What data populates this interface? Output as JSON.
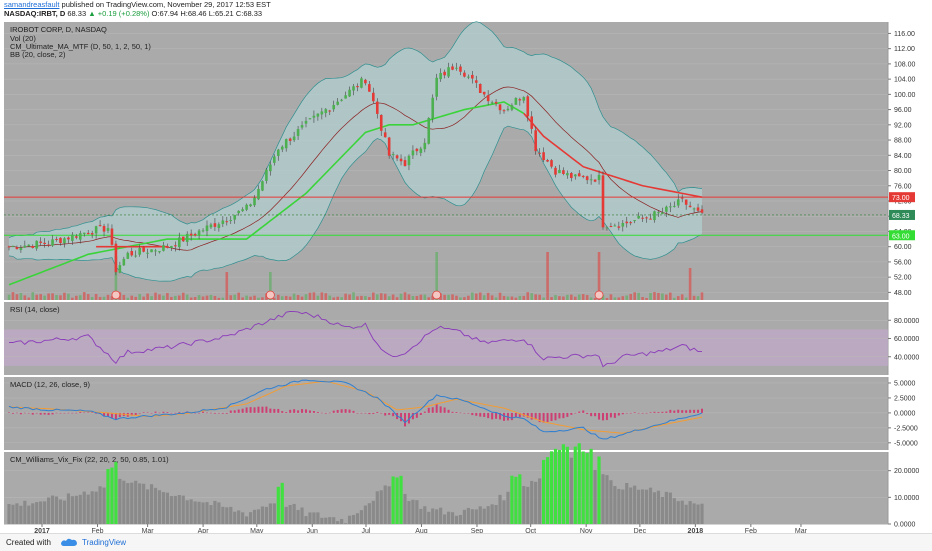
{
  "header": {
    "author": "samandreasfault",
    "published": "published on TradingView.com, November 29, 2017 12:53 EST",
    "symbol": "NASDAQ:IRBT, D",
    "last": "68.33",
    "change_icon": "up-triangle-icon",
    "change": "+0.19 (+0.28%)",
    "o": "O:67.94",
    "h": "H:68.46",
    "l": "L:65.21",
    "c": "C:68.33"
  },
  "footer": {
    "created_with": "Created with",
    "brand": "TradingView",
    "logo_icon": "tradingview-logo-icon"
  },
  "colors": {
    "pane_bg": "#aaaaaa",
    "pane_border": "#bcbcbc",
    "up_candle": "#4caf50",
    "down_candle": "#e53935",
    "wick": "#444444",
    "ma_green": "#3ad43a",
    "ma_red": "#e53935",
    "bb_fill": "#b4dadd",
    "bb_line": "#2f8f8f",
    "basis": "#8b2020",
    "rsi_line": "#8a3ab9",
    "rsi_band": "#c5a8d0",
    "macd_line": "#2f7fd1",
    "signal_line": "#f39c34",
    "hist": "#d81b60",
    "vix_green": "#40e040",
    "vix_gray": "#8a8a8a",
    "hline_red": "#e53935",
    "hline_green": "#33dd33"
  },
  "chart_data": [
    {
      "pane": "price",
      "type": "candlestick",
      "title": "IROBOT CORP, D, NASDAQ",
      "indicators": [
        "Vol (20)",
        "CM_Ultimate_MA_MTF (D, 50, 1, 2, 50, 1)",
        "BB (20, close, 2)"
      ],
      "y_ticks": [
        "116.00",
        "112.00",
        "108.00",
        "104.00",
        "100.00",
        "96.00",
        "92.00",
        "88.00",
        "84.00",
        "80.00",
        "76.00",
        "72.00",
        "68.00",
        "64.00",
        "60.00",
        "56.00",
        "52.00",
        "48.00"
      ],
      "y_tick_values": [
        116,
        112,
        108,
        104,
        100,
        96,
        92,
        88,
        84,
        80,
        76,
        72,
        68,
        64,
        60,
        56,
        52,
        48
      ],
      "ylim": [
        46,
        119
      ],
      "hlines": [
        {
          "value": 73.0,
          "label": "73.00",
          "color": "red"
        },
        {
          "value": 63.0,
          "label": "63.00",
          "color": "green"
        }
      ],
      "last_price_label": "68.33",
      "price_anchors": [
        [
          0,
          60
        ],
        [
          10,
          61
        ],
        [
          20,
          64
        ],
        [
          25,
          65
        ],
        [
          27,
          54
        ],
        [
          30,
          58
        ],
        [
          40,
          60
        ],
        [
          50,
          65
        ],
        [
          60,
          70
        ],
        [
          62,
          73
        ],
        [
          68,
          86
        ],
        [
          75,
          92
        ],
        [
          85,
          100
        ],
        [
          90,
          104
        ],
        [
          93,
          95
        ],
        [
          96,
          84
        ],
        [
          100,
          82
        ],
        [
          105,
          88
        ],
        [
          108,
          104
        ],
        [
          113,
          108
        ],
        [
          120,
          100
        ],
        [
          125,
          96
        ],
        [
          130,
          100
        ],
        [
          133,
          86
        ],
        [
          138,
          80
        ],
        [
          143,
          78
        ],
        [
          149,
          78
        ],
        [
          150,
          66
        ],
        [
          155,
          66
        ],
        [
          165,
          69
        ],
        [
          170,
          72
        ],
        [
          175,
          68
        ]
      ],
      "ma50_anchors": [
        [
          0,
          50
        ],
        [
          20,
          58
        ],
        [
          40,
          62
        ],
        [
          60,
          62
        ],
        [
          75,
          74
        ],
        [
          90,
          90
        ],
        [
          96,
          92
        ],
        [
          102,
          92
        ],
        [
          115,
          96
        ],
        [
          125,
          98
        ],
        [
          130,
          95
        ]
      ],
      "ma50_red_anchors": [
        [
          22,
          60
        ],
        [
          40,
          60
        ],
        [
          130,
          95
        ],
        [
          135,
          89
        ],
        [
          145,
          81
        ],
        [
          160,
          76
        ],
        [
          175,
          73
        ]
      ],
      "vol_spikes": [
        [
          27,
          0.9
        ],
        [
          55,
          0.5
        ],
        [
          66,
          0.5
        ],
        [
          108,
          1.0
        ],
        [
          136,
          1.0
        ],
        [
          149,
          1.0
        ],
        [
          172,
          0.6
        ]
      ]
    },
    {
      "pane": "rsi",
      "type": "line",
      "title": "RSI (14, close)",
      "y_ticks": [
        "80.0000",
        "60.0000",
        "40.0000"
      ],
      "y_tick_values": [
        80,
        60,
        40
      ],
      "ylim": [
        20,
        100
      ],
      "band": [
        30,
        70
      ],
      "anchors": [
        [
          0,
          54
        ],
        [
          10,
          58
        ],
        [
          20,
          62
        ],
        [
          27,
          35
        ],
        [
          30,
          45
        ],
        [
          40,
          50
        ],
        [
          55,
          62
        ],
        [
          66,
          80
        ],
        [
          72,
          90
        ],
        [
          78,
          84
        ],
        [
          85,
          72
        ],
        [
          90,
          75
        ],
        [
          93,
          55
        ],
        [
          96,
          40
        ],
        [
          100,
          45
        ],
        [
          108,
          72
        ],
        [
          113,
          68
        ],
        [
          120,
          55
        ],
        [
          130,
          60
        ],
        [
          135,
          38
        ],
        [
          140,
          40
        ],
        [
          149,
          42
        ],
        [
          150,
          28
        ],
        [
          155,
          40
        ],
        [
          165,
          46
        ],
        [
          170,
          52
        ],
        [
          175,
          45
        ]
      ]
    },
    {
      "pane": "macd",
      "type": "line",
      "title": "MACD (12, 26, close, 9)",
      "y_ticks": [
        "5.0000",
        "2.5000",
        "0.0000",
        "-2.5000",
        "-5.0000"
      ],
      "y_tick_values": [
        5.0,
        2.5,
        0.0,
        -2.5,
        -5.0
      ],
      "ylim": [
        -6.2,
        6.0
      ],
      "macd_anchors": [
        [
          0,
          1
        ],
        [
          10,
          0.5
        ],
        [
          20,
          0.3
        ],
        [
          27,
          -1.0
        ],
        [
          35,
          -0.5
        ],
        [
          45,
          0
        ],
        [
          55,
          1.0
        ],
        [
          65,
          4.0
        ],
        [
          75,
          5.6
        ],
        [
          85,
          5.0
        ],
        [
          93,
          2.5
        ],
        [
          100,
          -1.5
        ],
        [
          108,
          3.0
        ],
        [
          115,
          2.0
        ],
        [
          125,
          -0.5
        ],
        [
          130,
          -1.0
        ],
        [
          135,
          -3.2
        ],
        [
          145,
          -2.5
        ],
        [
          150,
          -4.5
        ],
        [
          158,
          -3.0
        ],
        [
          168,
          -1.2
        ],
        [
          175,
          0
        ]
      ],
      "signal_anchors": [
        [
          0,
          1
        ],
        [
          10,
          0.7
        ],
        [
          25,
          0
        ],
        [
          35,
          -0.6
        ],
        [
          45,
          -0.1
        ],
        [
          60,
          1.5
        ],
        [
          70,
          4.5
        ],
        [
          80,
          5.3
        ],
        [
          90,
          3.6
        ],
        [
          98,
          0.5
        ],
        [
          105,
          1.0
        ],
        [
          113,
          2.3
        ],
        [
          125,
          0.8
        ],
        [
          135,
          -1.5
        ],
        [
          145,
          -2.8
        ],
        [
          155,
          -3.4
        ],
        [
          165,
          -2.0
        ],
        [
          175,
          -0.7
        ]
      ]
    },
    {
      "pane": "vix",
      "type": "bar",
      "title": "CM_Williams_Vix_Fix (22, 20, 2, 50, 0.85, 1.01)",
      "y_ticks": [
        "20.0000",
        "10.0000",
        "0.0000"
      ],
      "y_tick_values": [
        20,
        10,
        0
      ],
      "ylim": [
        0,
        27
      ],
      "anchors": [
        [
          0,
          7
        ],
        [
          15,
          10
        ],
        [
          26,
          15
        ],
        [
          28,
          18
        ],
        [
          32,
          15
        ],
        [
          40,
          12
        ],
        [
          50,
          8
        ],
        [
          60,
          4
        ],
        [
          68,
          9
        ],
        [
          75,
          4
        ],
        [
          85,
          1.5
        ],
        [
          93,
          11
        ],
        [
          96,
          14
        ],
        [
          100,
          11
        ],
        [
          105,
          6
        ],
        [
          112,
          4
        ],
        [
          120,
          6
        ],
        [
          127,
          12
        ],
        [
          135,
          18
        ],
        [
          138,
          23
        ],
        [
          142,
          24
        ],
        [
          146,
          22
        ],
        [
          150,
          20
        ],
        [
          152,
          15
        ],
        [
          160,
          13
        ],
        [
          168,
          10
        ],
        [
          176,
          6
        ]
      ],
      "green_ranges": [
        [
          25,
          27
        ],
        [
          68,
          69
        ],
        [
          97,
          99
        ],
        [
          127,
          129
        ],
        [
          135,
          141
        ],
        [
          143,
          147
        ],
        [
          149,
          149
        ]
      ]
    }
  ],
  "x_axis": {
    "labels": [
      "2017",
      "Feb",
      "Mar",
      "Apr",
      "May",
      "Jun",
      "Jul",
      "Aug",
      "Sep",
      "Oct",
      "Nov",
      "Dec",
      "2018",
      "Feb",
      "Mar"
    ],
    "dates": [
      "2017-01-01",
      "2017-02-01",
      "2017-03-01",
      "2017-04-01",
      "2017-05-01",
      "2017-06-01",
      "2017-07-01",
      "2017-08-01",
      "2017-09-01",
      "2017-10-01",
      "2017-11-01",
      "2017-12-01",
      "2018-01-01",
      "2018-02-01",
      "2018-03-01"
    ]
  }
}
